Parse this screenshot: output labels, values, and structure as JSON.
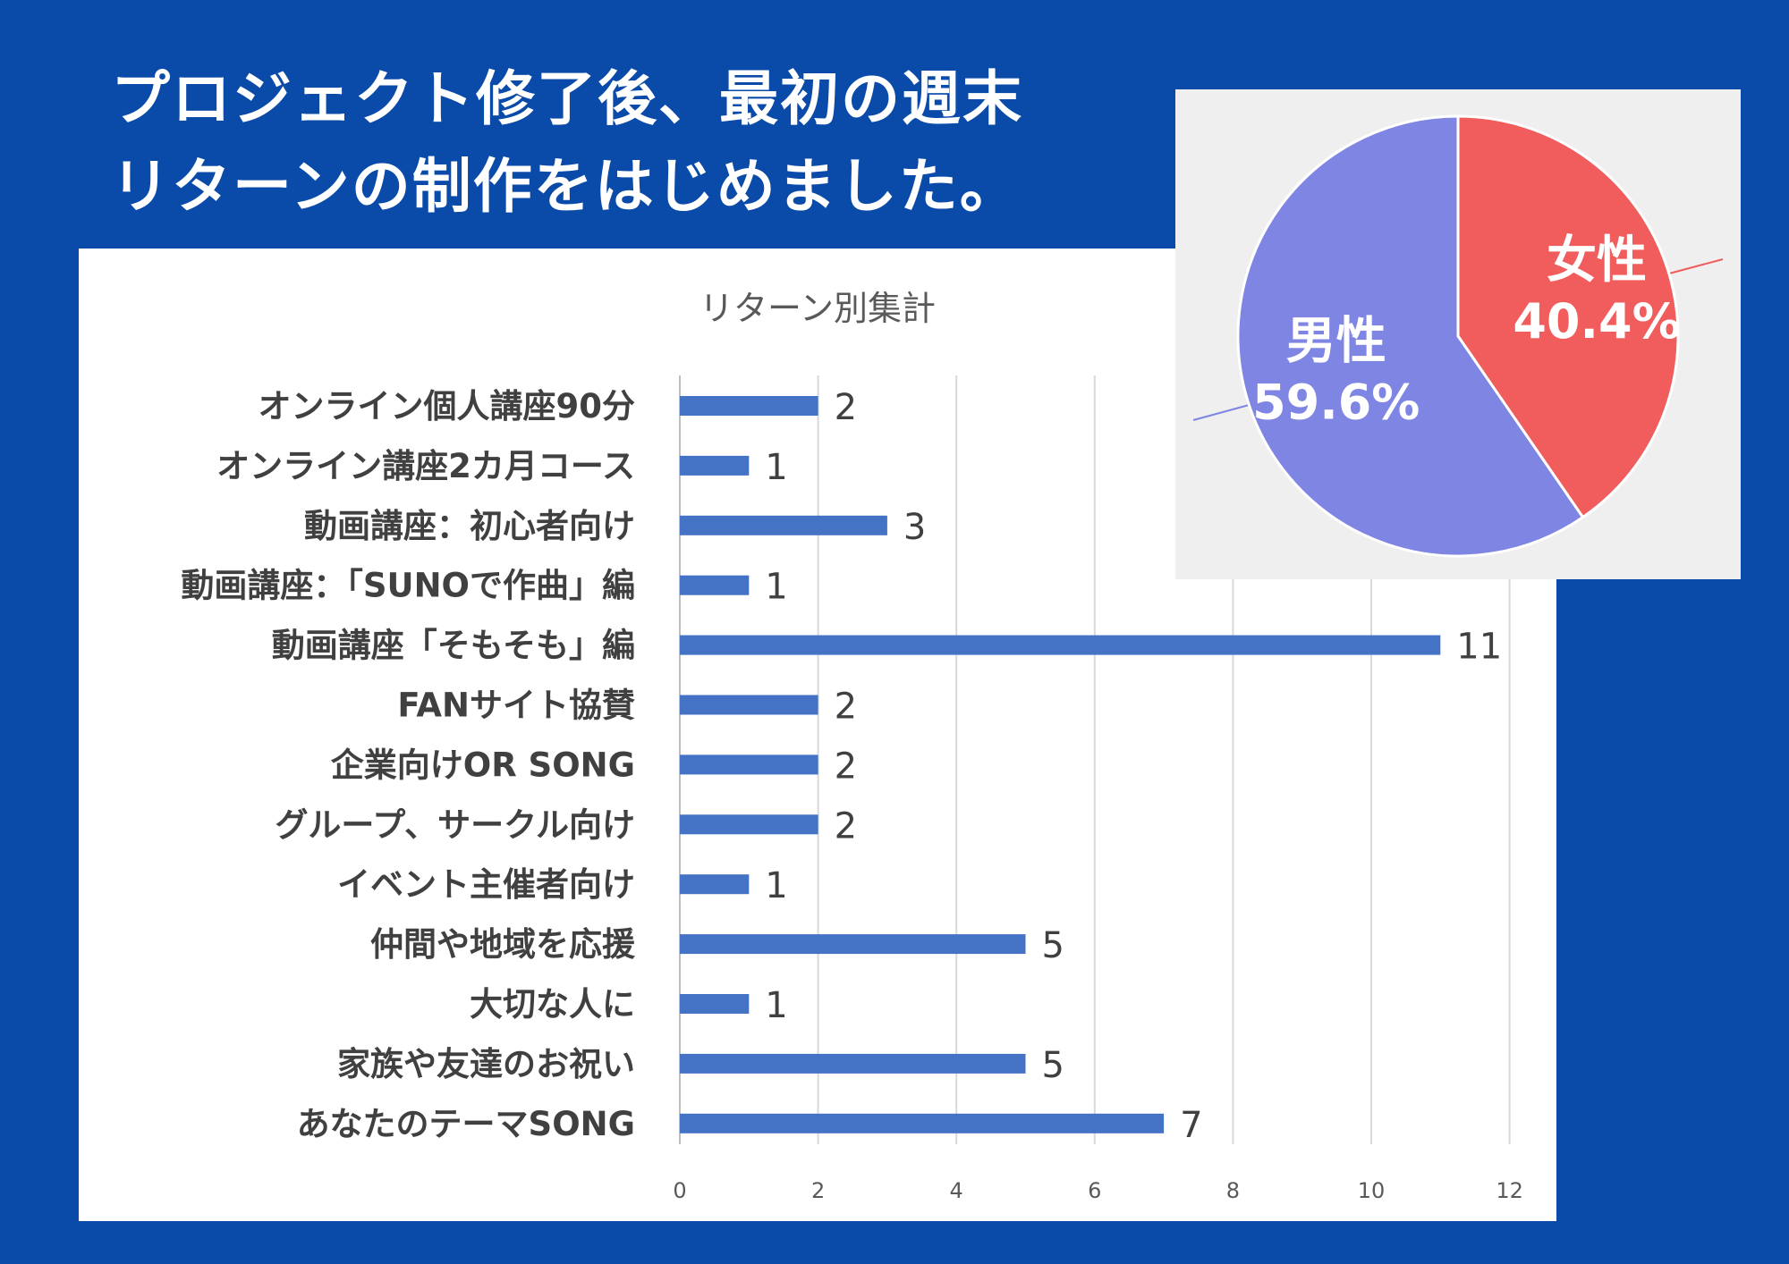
{
  "headline": {
    "line1": "プロジェクト修了後、最初の週末",
    "line2": "リターンの制作をはじめました。"
  },
  "chart_data": [
    {
      "type": "bar",
      "orientation": "horizontal",
      "title": "リターン別集計",
      "categories": [
        "オンライン個人講座90分",
        "オンライン講座2カ月コース",
        "動画講座：初心者向け",
        "動画講座：「SUNOで作曲」編",
        "動画講座「そもそも」編",
        "FANサイト協賛",
        "企業向けOR SONG",
        "グループ、サークル向け",
        "イベント主催者向け",
        "仲間や地域を応援",
        "大切な人に",
        "家族や友達のお祝い",
        "あなたのテーマSONG"
      ],
      "values": [
        2,
        1,
        3,
        1,
        11,
        2,
        2,
        2,
        1,
        5,
        1,
        5,
        7
      ],
      "xlim": [
        0,
        12
      ],
      "xticks": [
        0,
        2,
        4,
        6,
        8,
        10,
        12
      ],
      "grid": true,
      "bar_color": "#4472c4",
      "xlabel": "",
      "ylabel": ""
    },
    {
      "type": "pie",
      "labels": [
        "女性",
        "男性"
      ],
      "values": [
        40.4,
        59.6
      ],
      "value_labels": [
        "40.4%",
        "59.6%"
      ],
      "colors": [
        "#f15c5c",
        "#7f85e3"
      ]
    }
  ]
}
